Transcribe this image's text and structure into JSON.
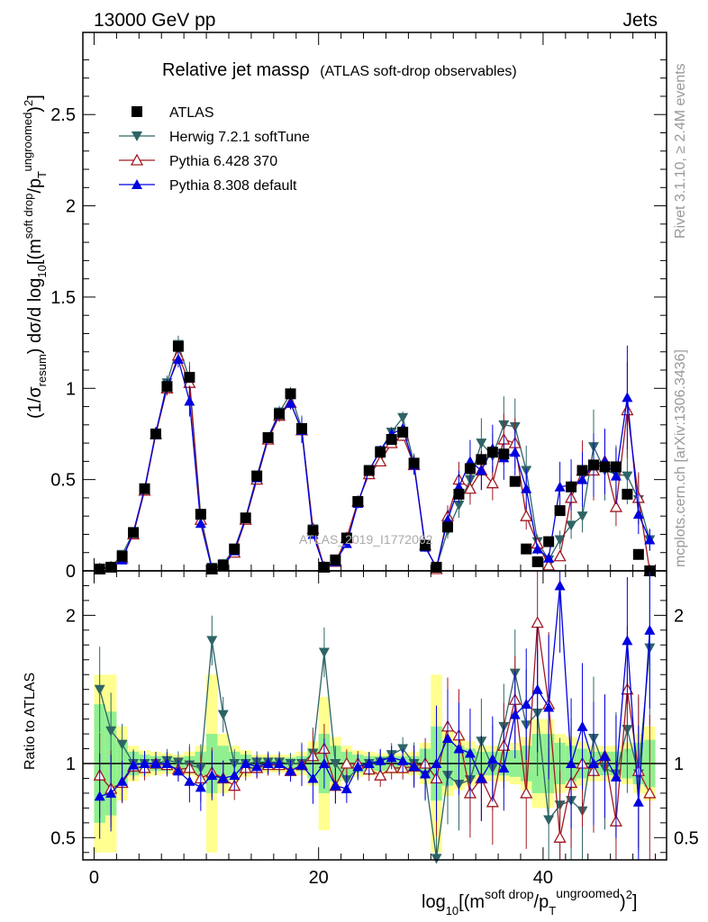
{
  "header": {
    "left": "13000 GeV pp",
    "right": "Jets"
  },
  "right_labels": {
    "rivet": "Rivet 3.1.10, ≥ 2.4M events",
    "mcplots": "mcplots.cern.ch [arXiv:1306.3436]"
  },
  "watermark": "ATLAS_2019_I1772062",
  "colors": {
    "data": "#000000",
    "herwig": "#2e6466",
    "py6": "#a01a22",
    "py8": "#0000e0",
    "band_inner": "#90f090",
    "band_outer": "#ffff90"
  },
  "chart_data": [
    {
      "type": "scatter",
      "title": "Relative jet massρ",
      "subtitle": "(ATLAS soft-drop observables)",
      "ylabel_main": "(1/σ",
      "ylabel_sub": "resum",
      "ylabel_rest": ") dσ/d log",
      "ylabel_sub2": "10",
      "ylabel_tail": "[(m",
      "ylabel_sup": "soft drop",
      "ylabel_tail2": "/p",
      "ylabel_sub3": "T",
      "ylabel_sup2": "ungroomed",
      "ylabel_tail3": ")",
      "ylabel_sup3": "2",
      "ylabel_tail4": "]",
      "xlim": [
        -1,
        51
      ],
      "ylim": [
        0,
        2.95
      ],
      "yticks": [
        0,
        0.5,
        1,
        1.5,
        2,
        2.5
      ],
      "ytick_labels": [
        "0",
        "0.5",
        "1",
        "1.5",
        "2",
        "2.5"
      ],
      "legend": [
        "ATLAS",
        "Herwig 7.2.1 softTune",
        "Pythia 6.428 370",
        "Pythia 8.308 default"
      ],
      "x": [
        0.5,
        1.5,
        2.5,
        3.5,
        4.5,
        5.5,
        6.5,
        7.5,
        8.5,
        9.5,
        10.5,
        11.5,
        12.5,
        13.5,
        14.5,
        15.5,
        16.5,
        17.5,
        18.5,
        19.5,
        20.5,
        21.5,
        22.5,
        23.5,
        24.5,
        25.5,
        26.5,
        27.5,
        28.5,
        29.5,
        30.5,
        31.5,
        32.5,
        33.5,
        34.5,
        35.5,
        36.5,
        37.5,
        38.5,
        39.5,
        40.5,
        41.5,
        42.5,
        43.5,
        44.5,
        45.5,
        46.5,
        47.5,
        48.5,
        49.5
      ],
      "series": [
        {
          "name": "ATLAS",
          "values": [
            0.01,
            0.02,
            0.08,
            0.21,
            0.45,
            0.75,
            1.01,
            1.23,
            1.06,
            0.31,
            0.01,
            0.03,
            0.12,
            0.29,
            0.52,
            0.73,
            0.86,
            0.97,
            0.78,
            0.22,
            0.02,
            0.06,
            0.18,
            0.38,
            0.55,
            0.65,
            0.72,
            0.76,
            0.59,
            0.14,
            0.02,
            0.24,
            0.42,
            0.56,
            0.61,
            0.65,
            0.64,
            0.49,
            0.12,
            0.05,
            0.16,
            0.33,
            0.46,
            0.55,
            0.58,
            0.57,
            0.57,
            0.42,
            0.09,
            0.0
          ]
        },
        {
          "name": "Herwig 7.2.1 softTune",
          "values": [
            0.015,
            0.02,
            0.09,
            0.21,
            0.45,
            0.75,
            1.03,
            1.24,
            1.05,
            0.3,
            0.02,
            0.04,
            0.12,
            0.29,
            0.52,
            0.73,
            0.87,
            0.97,
            0.78,
            0.23,
            0.02,
            0.05,
            0.16,
            0.37,
            0.55,
            0.66,
            0.76,
            0.84,
            0.59,
            0.13,
            0.02,
            0.22,
            0.36,
            0.5,
            0.7,
            0.63,
            0.8,
            0.79,
            0.55,
            0.16,
            0.06,
            0.17,
            0.25,
            0.3,
            0.68,
            0.55,
            0.53,
            0.52,
            0.39,
            0.17
          ]
        },
        {
          "name": "Pythia 6.428 370",
          "values": [
            0.01,
            0.02,
            0.07,
            0.2,
            0.44,
            0.75,
            1.0,
            1.18,
            1.03,
            0.28,
            0.01,
            0.03,
            0.1,
            0.28,
            0.5,
            0.72,
            0.85,
            0.92,
            0.77,
            0.23,
            0.02,
            0.05,
            0.18,
            0.38,
            0.53,
            0.6,
            0.7,
            0.74,
            0.58,
            0.14,
            0.01,
            0.3,
            0.5,
            0.45,
            0.55,
            0.48,
            0.72,
            0.7,
            0.3,
            0.15,
            0.03,
            0.08,
            0.4,
            0.55,
            0.55,
            0.6,
            0.35,
            0.88,
            0.4,
            0.0
          ]
        },
        {
          "name": "Pythia 8.308 default",
          "values": [
            0.01,
            0.02,
            0.06,
            0.21,
            0.45,
            0.76,
            1.01,
            1.16,
            0.93,
            0.26,
            0.01,
            0.03,
            0.11,
            0.29,
            0.51,
            0.73,
            0.86,
            0.92,
            0.77,
            0.2,
            0.02,
            0.05,
            0.15,
            0.37,
            0.55,
            0.66,
            0.75,
            0.78,
            0.58,
            0.13,
            0.02,
            0.28,
            0.46,
            0.6,
            0.55,
            0.67,
            0.62,
            0.65,
            0.45,
            0.12,
            0.07,
            0.46,
            0.47,
            0.5,
            0.58,
            0.6,
            0.52,
            0.95,
            0.31,
            0.17
          ]
        }
      ]
    },
    {
      "type": "scatter",
      "ylabel": "Ratio to ATLAS",
      "xlabel_main": "log",
      "xlabel_sub": "10",
      "xlabel_tail": "[(m",
      "xlabel_sup": "soft drop",
      "xlabel_tail2": "/p",
      "xlabel_sub2": "T",
      "xlabel_sup2": "ungroomed",
      "xlabel_tail3": ")",
      "xlabel_sup3": "2",
      "xlabel_tail4": "]",
      "xlim": [
        -1,
        51
      ],
      "ylim": [
        0.35,
        2.3
      ],
      "yticks": [
        0.5,
        1,
        2
      ],
      "ytick_labels": [
        "0.5",
        "1",
        "2"
      ],
      "xticks": [
        0,
        20,
        40
      ],
      "xtick_labels": [
        "0",
        "20",
        "40"
      ],
      "x": [
        0.5,
        1.5,
        2.5,
        3.5,
        4.5,
        5.5,
        6.5,
        7.5,
        8.5,
        9.5,
        10.5,
        11.5,
        12.5,
        13.5,
        14.5,
        15.5,
        16.5,
        17.5,
        18.5,
        19.5,
        20.5,
        21.5,
        22.5,
        23.5,
        24.5,
        25.5,
        26.5,
        27.5,
        28.5,
        29.5,
        30.5,
        31.5,
        32.5,
        33.5,
        34.5,
        35.5,
        36.5,
        37.5,
        38.5,
        39.5,
        40.5,
        41.5,
        42.5,
        43.5,
        44.5,
        45.5,
        46.5,
        47.5,
        48.5,
        49.5
      ],
      "band_inner": [
        0.4,
        0.35,
        0.15,
        0.08,
        0.06,
        0.05,
        0.05,
        0.04,
        0.05,
        0.08,
        0.2,
        0.12,
        0.08,
        0.06,
        0.04,
        0.04,
        0.04,
        0.04,
        0.05,
        0.1,
        0.2,
        0.12,
        0.08,
        0.06,
        0.05,
        0.05,
        0.05,
        0.05,
        0.05,
        0.1,
        0.25,
        0.15,
        0.12,
        0.1,
        0.08,
        0.08,
        0.08,
        0.09,
        0.12,
        0.2,
        0.2,
        0.14,
        0.12,
        0.1,
        0.08,
        0.08,
        0.08,
        0.1,
        0.14,
        0.16
      ],
      "band_outer": [
        0.6,
        0.6,
        0.25,
        0.12,
        0.09,
        0.08,
        0.07,
        0.06,
        0.08,
        0.12,
        0.6,
        0.2,
        0.12,
        0.09,
        0.06,
        0.06,
        0.06,
        0.06,
        0.08,
        0.15,
        0.45,
        0.18,
        0.12,
        0.09,
        0.08,
        0.07,
        0.07,
        0.07,
        0.08,
        0.14,
        0.6,
        0.22,
        0.18,
        0.15,
        0.12,
        0.12,
        0.12,
        0.14,
        0.18,
        0.3,
        0.3,
        0.2,
        0.18,
        0.15,
        0.12,
        0.12,
        0.12,
        0.14,
        0.2,
        0.25
      ],
      "series": [
        {
          "name": "Herwig 7.2.1 softTune",
          "values": [
            1.5,
            1.22,
            1.13,
            1.0,
            1.0,
            1.0,
            1.02,
            1.01,
            0.99,
            0.97,
            1.83,
            1.33,
            1.0,
            1.0,
            1.01,
            1.01,
            1.01,
            1.0,
            1.0,
            1.07,
            1.75,
            1.0,
            0.89,
            0.97,
            1.0,
            1.01,
            1.06,
            1.1,
            1.0,
            0.92,
            0.36,
            0.92,
            0.86,
            0.89,
            1.15,
            0.97,
            1.25,
            1.61,
            1.26,
            1.34,
            0.62,
            0.72,
            0.75,
            0.68,
            1.17,
            0.97,
            0.93,
            1.23,
            0.93,
            1.78
          ]
        },
        {
          "name": "Pythia 6.428 370",
          "values": [
            0.92,
            0.83,
            0.87,
            0.98,
            0.97,
            1.0,
            0.99,
            0.96,
            0.97,
            0.9,
            0.94,
            0.9,
            0.85,
            0.97,
            0.97,
            0.99,
            0.99,
            0.95,
            0.99,
            1.05,
            1.1,
            0.85,
            1.0,
            1.0,
            0.96,
            0.92,
            0.97,
            0.97,
            0.98,
            1.0,
            0.9,
            1.25,
            1.19,
            0.8,
            0.9,
            0.74,
            1.12,
            1.43,
            0.8,
            1.95,
            1.4,
            0.5,
            0.87,
            1.0,
            0.95,
            1.05,
            0.61,
            1.5,
            0.95,
            0.8
          ]
        },
        {
          "name": "Pythia 8.308 default",
          "values": [
            0.78,
            0.8,
            0.88,
            0.99,
            1.0,
            1.0,
            1.0,
            0.95,
            0.88,
            0.84,
            0.92,
            0.9,
            0.92,
            1.0,
            0.98,
            1.0,
            1.0,
            0.95,
            0.99,
            0.9,
            1.0,
            0.85,
            0.83,
            0.98,
            1.0,
            1.02,
            1.04,
            1.02,
            0.98,
            0.93,
            1.0,
            1.17,
            1.1,
            1.07,
            0.9,
            1.03,
            0.97,
            1.33,
            1.4,
            1.5,
            1.38,
            2.2,
            1.0,
            1.25,
            1.0,
            1.05,
            0.91,
            1.83,
            0.74,
            1.9
          ]
        }
      ]
    }
  ]
}
